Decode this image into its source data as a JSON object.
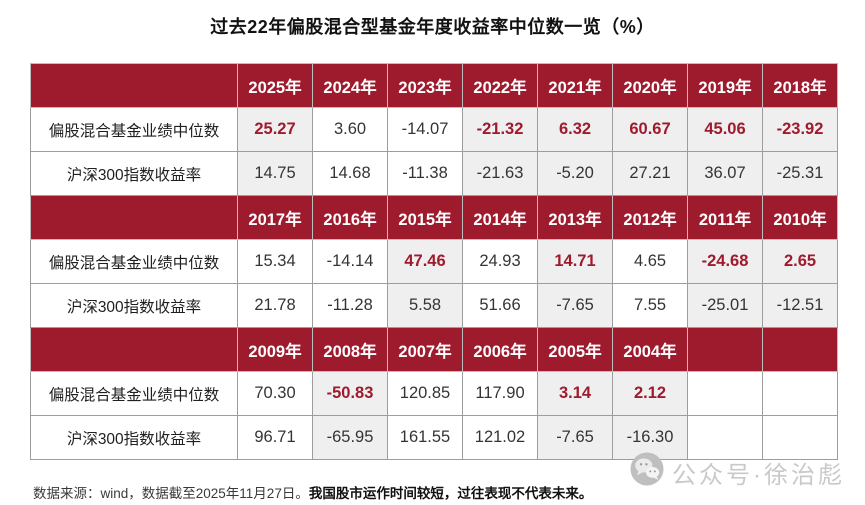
{
  "page": {
    "title": "过去22年偏股混合型基金年度收益率中位数一览（%）",
    "footnote_normal": "数据来源：wind，数据截至2025年11月27日。",
    "footnote_bold": "我国股市运作时间较短，过往表现不代表未来。"
  },
  "watermark": {
    "icon": "wechat-icon",
    "text": "公众号·徐治彪"
  },
  "colors": {
    "header_red": "#9e1b2e",
    "beat_text_red": "#9e1b2e",
    "highlight_cell_bg": "#efefef",
    "cell_border": "#9d9d9d",
    "watermark_gray": "#c9c9c9"
  },
  "table": {
    "row_labels": [
      "偏股混合基金业绩中位数",
      "沪深300指数收益率"
    ],
    "sections": [
      {
        "years": [
          "2025年",
          "2024年",
          "2023年",
          "2022年",
          "2021年",
          "2020年",
          "2019年",
          "2018年"
        ],
        "fund": [
          "25.27",
          "3.60",
          "-14.07",
          "-21.32",
          "6.32",
          "60.67",
          "45.06",
          "-23.92"
        ],
        "index": [
          "14.75",
          "14.68",
          "-11.38",
          "-21.63",
          "-5.20",
          "27.21",
          "36.07",
          "-25.31"
        ],
        "highlight": [
          true,
          false,
          false,
          true,
          true,
          true,
          true,
          true
        ]
      },
      {
        "years": [
          "2017年",
          "2016年",
          "2015年",
          "2014年",
          "2013年",
          "2012年",
          "2011年",
          "2010年"
        ],
        "fund": [
          "15.34",
          "-14.14",
          "47.46",
          "24.93",
          "14.71",
          "4.65",
          "-24.68",
          "2.65"
        ],
        "index": [
          "21.78",
          "-11.28",
          "5.58",
          "51.66",
          "-7.65",
          "7.55",
          "-25.01",
          "-12.51"
        ],
        "highlight": [
          false,
          false,
          true,
          false,
          true,
          false,
          true,
          true
        ]
      },
      {
        "years": [
          "2009年",
          "2008年",
          "2007年",
          "2006年",
          "2005年",
          "2004年",
          "",
          ""
        ],
        "fund": [
          "70.30",
          "-50.83",
          "120.85",
          "117.90",
          "3.14",
          "2.12",
          "",
          ""
        ],
        "index": [
          "96.71",
          "-65.95",
          "161.55",
          "121.02",
          "-7.65",
          "-16.30",
          "",
          ""
        ],
        "highlight": [
          false,
          true,
          false,
          false,
          true,
          true,
          false,
          false
        ]
      }
    ]
  },
  "chart_data": {
    "type": "table",
    "title": "过去22年偏股混合型基金年度收益率中位数一览（%）",
    "row_labels": [
      "偏股混合基金业绩中位数",
      "沪深300指数收益率"
    ],
    "years": [
      2025,
      2024,
      2023,
      2022,
      2021,
      2020,
      2019,
      2018,
      2017,
      2016,
      2015,
      2014,
      2013,
      2012,
      2011,
      2010,
      2009,
      2008,
      2007,
      2006,
      2005,
      2004
    ],
    "series": [
      {
        "name": "偏股混合基金业绩中位数",
        "values": [
          25.27,
          3.6,
          -14.07,
          -21.32,
          6.32,
          60.67,
          45.06,
          -23.92,
          15.34,
          -14.14,
          47.46,
          24.93,
          14.71,
          4.65,
          -24.68,
          2.65,
          70.3,
          -50.83,
          120.85,
          117.9,
          3.14,
          2.12
        ]
      },
      {
        "name": "沪深300指数收益率",
        "values": [
          14.75,
          14.68,
          -11.38,
          -21.63,
          -5.2,
          27.21,
          36.07,
          -25.31,
          21.78,
          -11.28,
          5.58,
          51.66,
          -7.65,
          7.55,
          -25.01,
          -12.51,
          96.71,
          -65.95,
          161.55,
          121.02,
          -7.65,
          -16.3
        ]
      }
    ],
    "fund_beat_index_years": [
      2025,
      2022,
      2021,
      2020,
      2019,
      2018,
      2015,
      2013,
      2011,
      2010,
      2008,
      2005,
      2004
    ],
    "notes": "数据来源：wind，数据截至2025年11月27日。我国股市运作时间较短，过往表现不代表未来。"
  }
}
